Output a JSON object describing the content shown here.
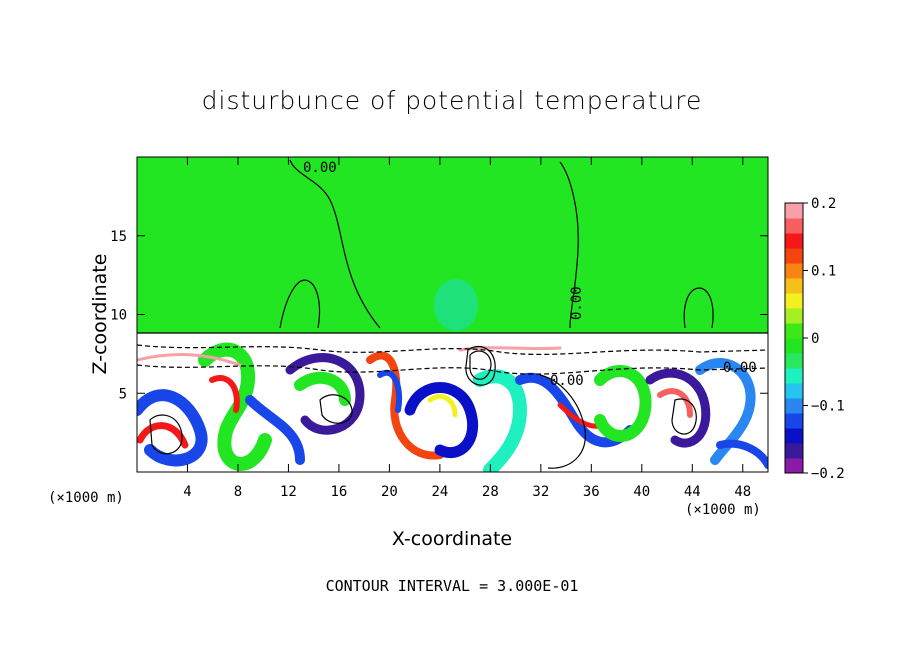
{
  "chart_data": {
    "type": "heatmap",
    "title": "disturbunce of potential temperature",
    "xlabel": "X-coordinate",
    "ylabel": "Z-coordinate",
    "x_unit_label_left": "(×1000 m)",
    "x_unit_label_right": "(×1000 m)",
    "xlim": [
      0,
      50
    ],
    "ylim": [
      0,
      20
    ],
    "x_ticks": [
      4,
      8,
      12,
      16,
      20,
      24,
      28,
      32,
      36,
      40,
      44,
      48
    ],
    "y_ticks": [
      5,
      10,
      15
    ],
    "colorbar": {
      "range": [
        -0.2,
        0.2
      ],
      "tick_values": [
        0.2,
        0.1,
        0,
        -0.1,
        -0.2
      ],
      "tick_labels": [
        "0.2",
        "0.1",
        "0",
        "−0.1",
        "−0.2"
      ],
      "colors": [
        "#8a1aa8",
        "#3a1a9a",
        "#0a10c8",
        "#1846e8",
        "#2a86f0",
        "#24c6f0",
        "#1ef0c0",
        "#28e860",
        "#22e622",
        "#3ee818",
        "#a4f022",
        "#f2f020",
        "#f6c018",
        "#f88414",
        "#f44410",
        "#f41818",
        "#f86060",
        "#f8a0a8"
      ]
    },
    "contour_labels": [
      "0.00",
      "0.00",
      "0.00",
      "0.00"
    ],
    "contour_interval_text": "CONTOUR INTERVAL = 3.000E-01",
    "grid": false
  }
}
